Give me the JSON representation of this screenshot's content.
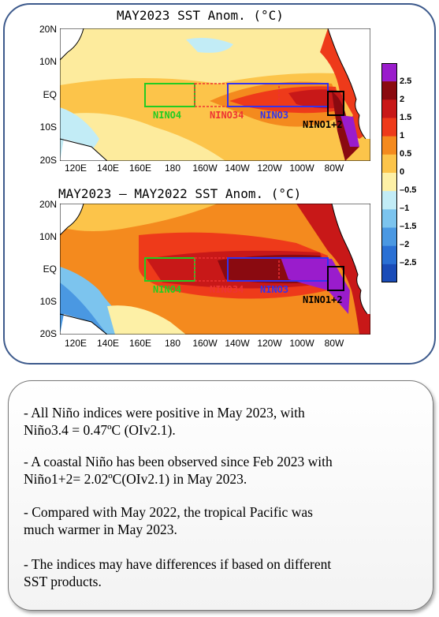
{
  "map_top": {
    "title": "MAY2023 SST Anom. (°C)",
    "lat_labels": [
      "20N",
      "10N",
      "EQ",
      "10S",
      "20S"
    ],
    "lon_labels": [
      "120E",
      "140E",
      "160E",
      "180",
      "160W",
      "140W",
      "120W",
      "100W",
      "80W"
    ],
    "boxes": [
      {
        "name": "NINO4",
        "label": "NINO4",
        "color": "#22cc22"
      },
      {
        "name": "NINO34",
        "label": "NINO34",
        "color": "#ee3333"
      },
      {
        "name": "NINO3",
        "label": "NINO3",
        "color": "#3333ee"
      },
      {
        "name": "NINO12",
        "label": "NINO1+2",
        "color": "#000000"
      }
    ]
  },
  "map_bottom": {
    "title": "MAY2023 – MAY2022 SST Anom. (°C)",
    "lat_labels": [
      "20N",
      "10N",
      "EQ",
      "10S",
      "20S"
    ],
    "lon_labels": [
      "120E",
      "140E",
      "160E",
      "180",
      "160W",
      "140W",
      "120W",
      "100W",
      "80W"
    ],
    "boxes": [
      {
        "name": "NINO4",
        "label": "NINO4",
        "color": "#22cc22"
      },
      {
        "name": "NINO34",
        "label": "NINO34",
        "color": "#ee3333"
      },
      {
        "name": "NINO3",
        "label": "NINO3",
        "color": "#3333ee"
      },
      {
        "name": "NINO12",
        "label": "NINO1+2",
        "color": "#000000"
      }
    ]
  },
  "colorbar": {
    "labels": [
      "2.5",
      "2",
      "1.5",
      "1",
      "0.5",
      "0",
      "–0.5",
      "–1",
      "–1.5",
      "–2",
      "–2.5"
    ],
    "colors": [
      "#9a1ccc",
      "#8a0a10",
      "#c81818",
      "#ee3a1a",
      "#f48a1e",
      "#fcc44a",
      "#fdf0a6",
      "#c2ecf6",
      "#7cc4ee",
      "#4a98e2",
      "#2a70d4",
      "#1a4cb8"
    ]
  },
  "notes": [
    {
      "line1": "- All Niño indices were positive in May 2023, with",
      "line2": "Niño3.4 = 0.47ºC (OIv2.1)."
    },
    {
      "line1": "- A coastal Niño has been observed since Feb 2023 with",
      "line2": "Niño1+2= 2.02ºC(OIv2.1) in May 2023."
    },
    {
      "line1": "- Compared with May 2022, the tropical Pacific was",
      "line2": "much warmer in May 2023."
    },
    {
      "line1": "- The indices may have differences if based on different",
      "line2": "SST products."
    }
  ]
}
